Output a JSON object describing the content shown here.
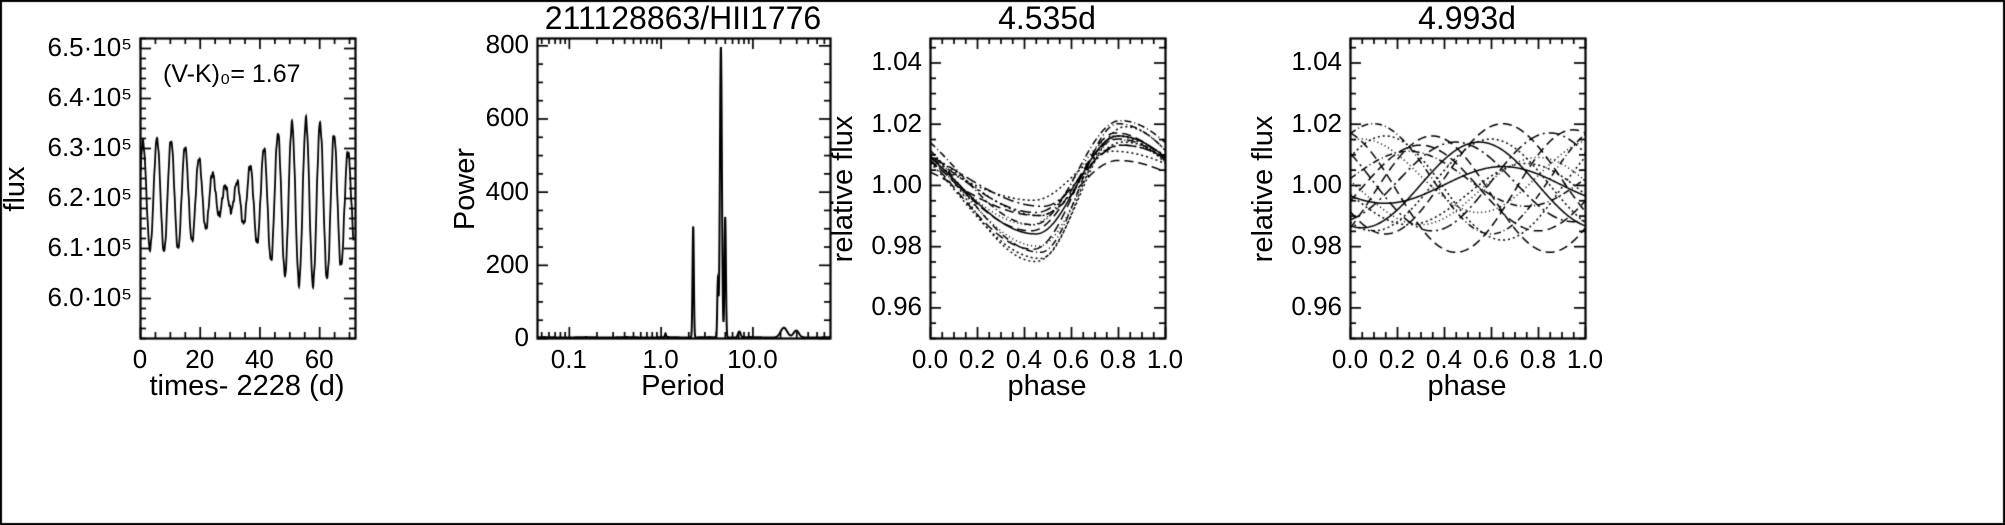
{
  "figure": {
    "background": "#ffffff",
    "line_color": "#000000"
  },
  "chart_data": [
    {
      "type": "line",
      "title": "",
      "xlabel": "times- 2228 (d)",
      "ylabel": "flux",
      "annotation": "(V-K)₀= 1.67",
      "xlim": [
        0,
        72
      ],
      "ylim": [
        592000,
        652000
      ],
      "xticks": [
        {
          "v": 0,
          "label": "0"
        },
        {
          "v": 20,
          "label": "20"
        },
        {
          "v": 40,
          "label": "40"
        },
        {
          "v": 60,
          "label": "60"
        }
      ],
      "yticks": [
        {
          "v": 600000,
          "label": "6.0·10⁵"
        },
        {
          "v": 610000,
          "label": "6.1·10⁵"
        },
        {
          "v": 620000,
          "label": "6.2·10⁵"
        },
        {
          "v": 630000,
          "label": "6.3·10⁵"
        },
        {
          "v": 640000,
          "label": "6.4·10⁵"
        },
        {
          "v": 650000,
          "label": "6.5·10⁵"
        }
      ],
      "x_minor": 5,
      "y_minor": 2000,
      "lightcurve": {
        "base": 620800,
        "trend": -30,
        "amp_growth": 0.01,
        "components": [
          {
            "period": 4.535,
            "amp": 6200,
            "phase": 0.0
          },
          {
            "period": 4.993,
            "amp": 4400,
            "phase": 0.634
          },
          {
            "period": 0.91,
            "amp": 300,
            "phase": 1.3
          },
          {
            "period": 0.53,
            "amp": 200,
            "phase": 2.1
          }
        ],
        "t_min": 0.0,
        "t_max": 71.5,
        "dt": 0.05
      }
    },
    {
      "type": "line",
      "title": "211128863/HII1776",
      "xlabel": "Period",
      "ylabel": "Power",
      "xscale": "log",
      "xlim": [
        0.045,
        70
      ],
      "ylim": [
        0,
        820
      ],
      "xticks": [
        {
          "v": 0.1,
          "label": "0.1"
        },
        {
          "v": 1.0,
          "label": "1.0"
        },
        {
          "v": 10.0,
          "label": "10.0"
        }
      ],
      "yticks": [
        {
          "v": 0,
          "label": "0"
        },
        {
          "v": 200,
          "label": "200"
        },
        {
          "v": 400,
          "label": "400"
        },
        {
          "v": 600,
          "label": "600"
        },
        {
          "v": 800,
          "label": "800"
        }
      ],
      "y_minor": 50,
      "peaks": [
        {
          "period": 1.13,
          "power": 10,
          "w": 0.008
        },
        {
          "period": 2.263,
          "power": 305,
          "w": 0.01
        },
        {
          "period": 4.2,
          "power": 150,
          "w": 0.009
        },
        {
          "period": 4.535,
          "power": 795,
          "w": 0.015
        },
        {
          "period": 5.05,
          "power": 330,
          "w": 0.011
        },
        {
          "period": 7.2,
          "power": 16,
          "w": 0.02
        },
        {
          "period": 22,
          "power": 26,
          "w": 0.05
        },
        {
          "period": 30,
          "power": 18,
          "w": 0.04
        }
      ]
    },
    {
      "type": "line",
      "title": "4.535d",
      "xlabel": "phase",
      "ylabel": "relative flux",
      "xlim": [
        0,
        1
      ],
      "ylim": [
        0.95,
        1.048
      ],
      "xticks": [
        {
          "v": 0.0,
          "label": "0.0"
        },
        {
          "v": 0.2,
          "label": "0.2"
        },
        {
          "v": 0.4,
          "label": "0.4"
        },
        {
          "v": 0.6,
          "label": "0.6"
        },
        {
          "v": 0.8,
          "label": "0.8"
        },
        {
          "v": 1.0,
          "label": "1.0"
        }
      ],
      "yticks": [
        {
          "v": 0.96,
          "label": "0.96"
        },
        {
          "v": 0.98,
          "label": "0.98"
        },
        {
          "v": 1.0,
          "label": "1.00"
        },
        {
          "v": 1.02,
          "label": "1.02"
        },
        {
          "v": 1.04,
          "label": "1.04"
        }
      ],
      "x_minor": 0.05,
      "y_minor": 0.005,
      "curves": [
        {
          "a": 0.016,
          "mn": 0.45,
          "mx": 0.8,
          "off": 0.0,
          "d": 0
        },
        {
          "a": 0.012,
          "mn": 0.47,
          "mx": 0.82,
          "off": 0.002,
          "d": 1
        },
        {
          "a": 0.019,
          "mn": 0.44,
          "mx": 0.79,
          "off": -0.002,
          "d": 2
        },
        {
          "a": 0.01,
          "mn": 0.48,
          "mx": 0.81,
          "off": 0.003,
          "d": 3
        },
        {
          "a": 0.022,
          "mn": 0.45,
          "mx": 0.83,
          "off": -0.003,
          "d": 1
        },
        {
          "a": 0.014,
          "mn": 0.43,
          "mx": 0.78,
          "off": 0.001,
          "d": 4
        },
        {
          "a": 0.009,
          "mn": 0.46,
          "mx": 0.8,
          "off": -0.001,
          "d": 2
        },
        {
          "a": 0.017,
          "mn": 0.44,
          "mx": 0.81,
          "off": 0.004,
          "d": 5
        },
        {
          "a": 0.02,
          "mn": 0.47,
          "mx": 0.79,
          "off": -0.004,
          "d": 1
        },
        {
          "a": 0.011,
          "mn": 0.45,
          "mx": 0.82,
          "off": 0.002,
          "d": 3
        },
        {
          "a": 0.015,
          "mn": 0.43,
          "mx": 0.8,
          "off": 0.0,
          "d": 2
        },
        {
          "a": 0.018,
          "mn": 0.46,
          "mx": 0.81,
          "off": -0.002,
          "d": 4
        },
        {
          "a": 0.008,
          "mn": 0.44,
          "mx": 0.78,
          "off": 0.003,
          "d": 1
        },
        {
          "a": 0.021,
          "mn": 0.47,
          "mx": 0.8,
          "off": -0.001,
          "d": 5
        }
      ]
    },
    {
      "type": "line",
      "title": "4.993d",
      "xlabel": "phase",
      "ylabel": "relative flux",
      "xlim": [
        0,
        1
      ],
      "ylim": [
        0.95,
        1.048
      ],
      "xticks": [
        {
          "v": 0.0,
          "label": "0.0"
        },
        {
          "v": 0.2,
          "label": "0.2"
        },
        {
          "v": 0.4,
          "label": "0.4"
        },
        {
          "v": 0.6,
          "label": "0.6"
        },
        {
          "v": 0.8,
          "label": "0.8"
        },
        {
          "v": 1.0,
          "label": "1.0"
        }
      ],
      "yticks": [
        {
          "v": 0.96,
          "label": "0.96"
        },
        {
          "v": 0.98,
          "label": "0.98"
        },
        {
          "v": 1.0,
          "label": "1.00"
        },
        {
          "v": 1.02,
          "label": "1.02"
        },
        {
          "v": 1.04,
          "label": "1.04"
        }
      ],
      "x_minor": 0.05,
      "y_minor": 0.005,
      "curves": [
        {
          "a": 0.014,
          "mn": 0.05,
          "mx": 0.55,
          "off": 0.0,
          "d": 0
        },
        {
          "a": 0.018,
          "mn": 0.15,
          "mx": 0.65,
          "off": 0.002,
          "d": 2
        },
        {
          "a": 0.01,
          "mn": 0.25,
          "mx": 0.75,
          "off": -0.003,
          "d": 1
        },
        {
          "a": 0.016,
          "mn": 0.35,
          "mx": 0.85,
          "off": 0.001,
          "d": 3
        },
        {
          "a": 0.02,
          "mn": 0.45,
          "mx": 0.95,
          "off": -0.002,
          "d": 2
        },
        {
          "a": 0.012,
          "mn": 0.55,
          "mx": 0.05,
          "off": 0.003,
          "d": 4
        },
        {
          "a": 0.017,
          "mn": 0.65,
          "mx": 0.15,
          "off": -0.001,
          "d": 1
        },
        {
          "a": 0.009,
          "mn": 0.75,
          "mx": 0.25,
          "off": 0.002,
          "d": 5
        },
        {
          "a": 0.019,
          "mn": 0.85,
          "mx": 0.35,
          "off": -0.003,
          "d": 2
        },
        {
          "a": 0.013,
          "mn": 0.95,
          "mx": 0.45,
          "off": 0.001,
          "d": 3
        },
        {
          "a": 0.015,
          "mn": 0.1,
          "mx": 0.6,
          "off": 0.0,
          "d": 1
        },
        {
          "a": 0.011,
          "mn": 0.3,
          "mx": 0.8,
          "off": -0.002,
          "d": 4
        },
        {
          "a": 0.018,
          "mn": 0.6,
          "mx": 0.1,
          "off": 0.002,
          "d": 5
        },
        {
          "a": 0.014,
          "mn": 0.8,
          "mx": 0.3,
          "off": -0.001,
          "d": 2
        },
        {
          "a": 0.006,
          "mn": 0.15,
          "mx": 0.65,
          "off": 0.0,
          "d": 0
        }
      ]
    }
  ]
}
